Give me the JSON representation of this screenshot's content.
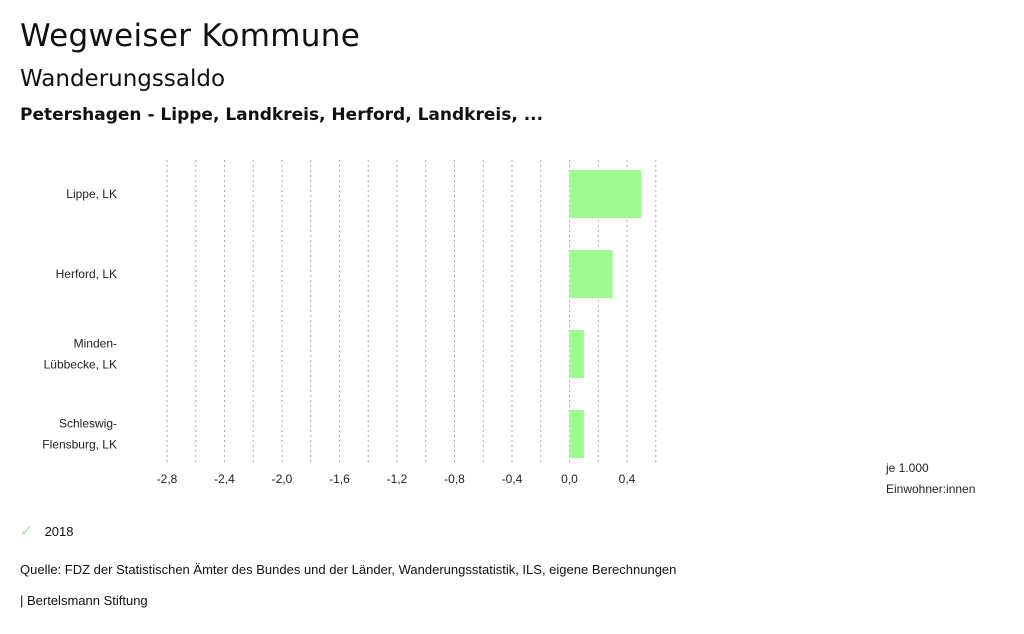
{
  "header": {
    "title": "Wegweiser Kommune",
    "subtitle": "Wanderungssaldo",
    "region": "Petershagen - Lippe, Landkreis, Herford, Landkreis, ..."
  },
  "chart_data": {
    "type": "bar",
    "orientation": "horizontal",
    "categories": [
      [
        "Lippe, LK"
      ],
      [
        "Herford, LK"
      ],
      [
        "Minden-",
        "Lübbecke, LK"
      ],
      [
        "Schleswig-",
        "Flensburg, LK"
      ]
    ],
    "series": [
      {
        "name": "2018",
        "values": [
          0.5,
          0.3,
          0.1,
          0.1
        ],
        "color": "#9dfa8f"
      }
    ],
    "xlim": [
      -2.9,
      0.6
    ],
    "xticks": [
      -2.8,
      -2.4,
      -2.0,
      -1.6,
      -1.2,
      -0.8,
      -0.4,
      0.0,
      0.4
    ],
    "xtick_labels": [
      "-2,8",
      "-2,4",
      "-2,0",
      "-1,6",
      "-1,2",
      "-0,8",
      "-0,4",
      "0,0",
      "0,4"
    ],
    "grid_step": 0.2,
    "unit_label": [
      "je 1.000",
      "Einwohner:innen"
    ],
    "legend_position": "bottom-left"
  },
  "legend": {
    "items": [
      {
        "label": "2018",
        "icon": "check-icon",
        "color": "#8ef28e"
      }
    ]
  },
  "footer": {
    "source": "Quelle: FDZ der Statistischen Ämter des Bundes und der Länder, Wanderungsstatistik, ILS, eigene Berechnungen",
    "brand": "| Bertelsmann Stiftung"
  }
}
